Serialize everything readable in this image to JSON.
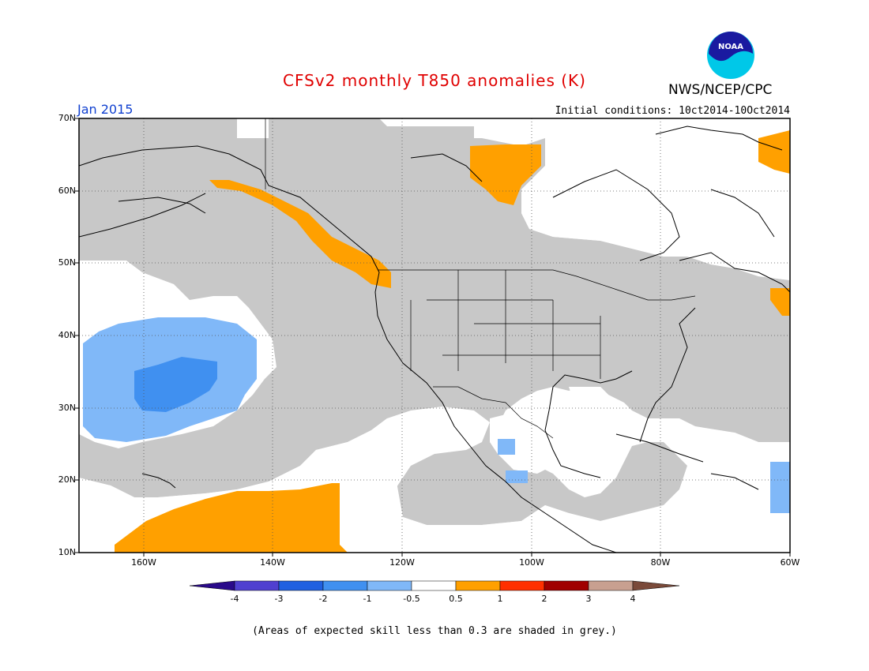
{
  "header": {
    "title": "CFSv2 monthly T850 anomalies (K)",
    "org": "NWS/NCEP/CPC",
    "period": "Jan 2015",
    "initial_conditions": "Initial conditions: 10ct2014-10Oct2014"
  },
  "logo": {
    "text": "NOAA",
    "icon": "noaa-logo"
  },
  "map": {
    "projection": "lat-lon",
    "lat_range": [
      10,
      70
    ],
    "lon_range": [
      -170,
      -60
    ],
    "lat_labels": [
      "70N",
      "60N",
      "50N",
      "40N",
      "30N",
      "20N",
      "10N"
    ],
    "lon_labels": [
      "160W",
      "140W",
      "120W",
      "100W",
      "80W",
      "60W"
    ],
    "grey_color": "#c8c8c8"
  },
  "colorbar": {
    "labels": [
      "-4",
      "-3",
      "-2",
      "-1",
      "-0.5",
      "0.5",
      "1",
      "2",
      "3",
      "4"
    ],
    "colors": [
      "#2a0a8a",
      "#5040d0",
      "#2060e0",
      "#4090f0",
      "#80b8f8",
      "#ffffff",
      "#ffa000",
      "#ff3000",
      "#a00000",
      "#c8a090",
      "#7a4a3a"
    ]
  },
  "note": "(Areas of expected skill less than 0.3 are shaded in grey.)"
}
